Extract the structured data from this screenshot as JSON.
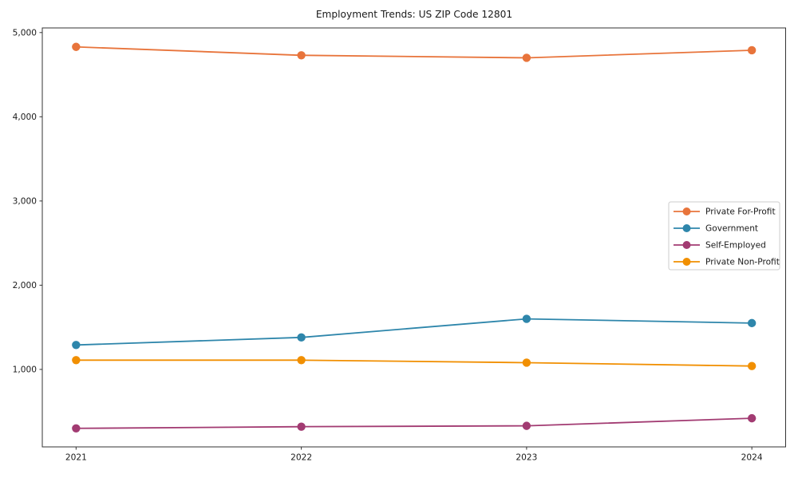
{
  "chart_data": {
    "type": "line",
    "title": "Employment Trends: US ZIP Code 12801",
    "xlabel": "",
    "ylabel": "",
    "grid": false,
    "legend_position": "center-right",
    "marker": "circle",
    "categories": [
      "2021",
      "2022",
      "2023",
      "2024"
    ],
    "series": [
      {
        "name": "Private For-Profit",
        "color": "#E8743B",
        "values": [
          4830,
          4730,
          4700,
          4790
        ]
      },
      {
        "name": "Government",
        "color": "#2E86AB",
        "values": [
          1290,
          1380,
          1600,
          1550
        ]
      },
      {
        "name": "Self-Employed",
        "color": "#A23B72",
        "values": [
          300,
          320,
          330,
          420
        ]
      },
      {
        "name": "Private Non-Profit",
        "color": "#F18F01",
        "values": [
          1110,
          1110,
          1080,
          1040
        ]
      }
    ],
    "yticks": [
      {
        "value": 1000,
        "label": "1,000"
      },
      {
        "value": 2000,
        "label": "2,000"
      },
      {
        "value": 3000,
        "label": "3,000"
      },
      {
        "value": 4000,
        "label": "4,000"
      },
      {
        "value": 5000,
        "label": "5,000"
      }
    ],
    "ylim": [
      80,
      5055
    ],
    "x_margin": 0.15,
    "colors": {
      "axis": "#333333",
      "text": "#1a1a1a",
      "legend_border": "#cccccc",
      "background": "#ffffff"
    }
  }
}
